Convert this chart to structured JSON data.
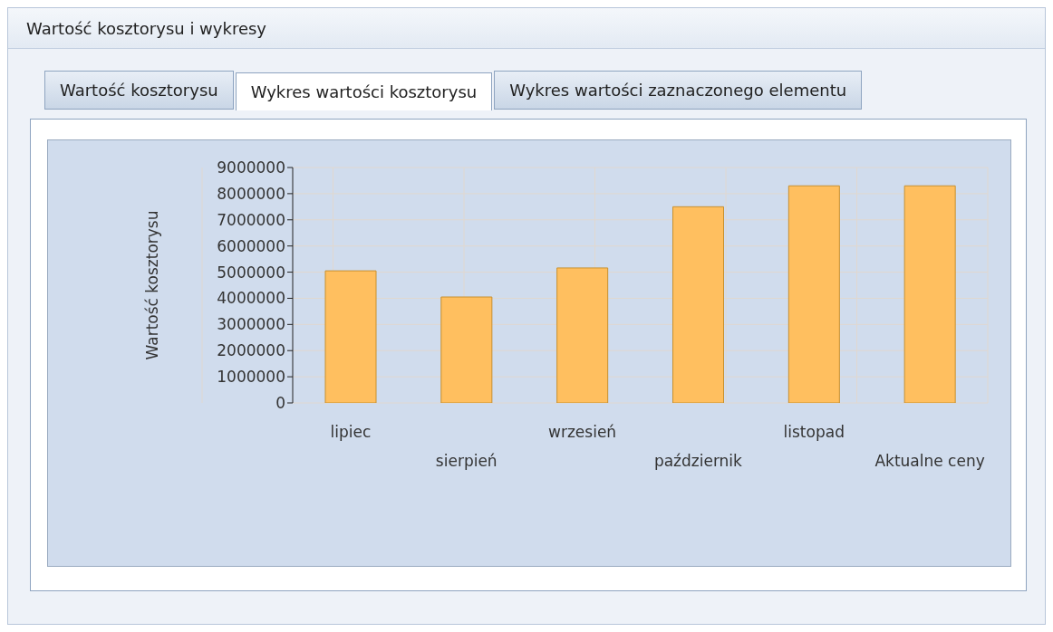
{
  "chart_data": {
    "type": "bar",
    "title": "Wartość kosztorysu i wykresy",
    "subtitle": "Wykres wartości kosztorysu",
    "annotations": [
      "Wartość kosztorysu",
      "Wykres wartości zaznaczonego elementu"
    ],
    "ylabel": "Wartość kosztorysu",
    "categories": [
      "lipiec",
      "sierpień",
      "wrzesień",
      "październik",
      "listopad",
      "Aktualne ceny"
    ],
    "values": [
      5050000,
      4050000,
      5160000,
      7500000,
      8300000,
      8300000
    ],
    "color": "#ffbf5f",
    "ylim": [
      0,
      9000000
    ],
    "yticks": [
      0,
      1000000,
      2000000,
      3000000,
      4000000,
      5000000,
      6000000,
      7000000,
      8000000,
      9000000
    ],
    "grid": true,
    "legend": false
  }
}
